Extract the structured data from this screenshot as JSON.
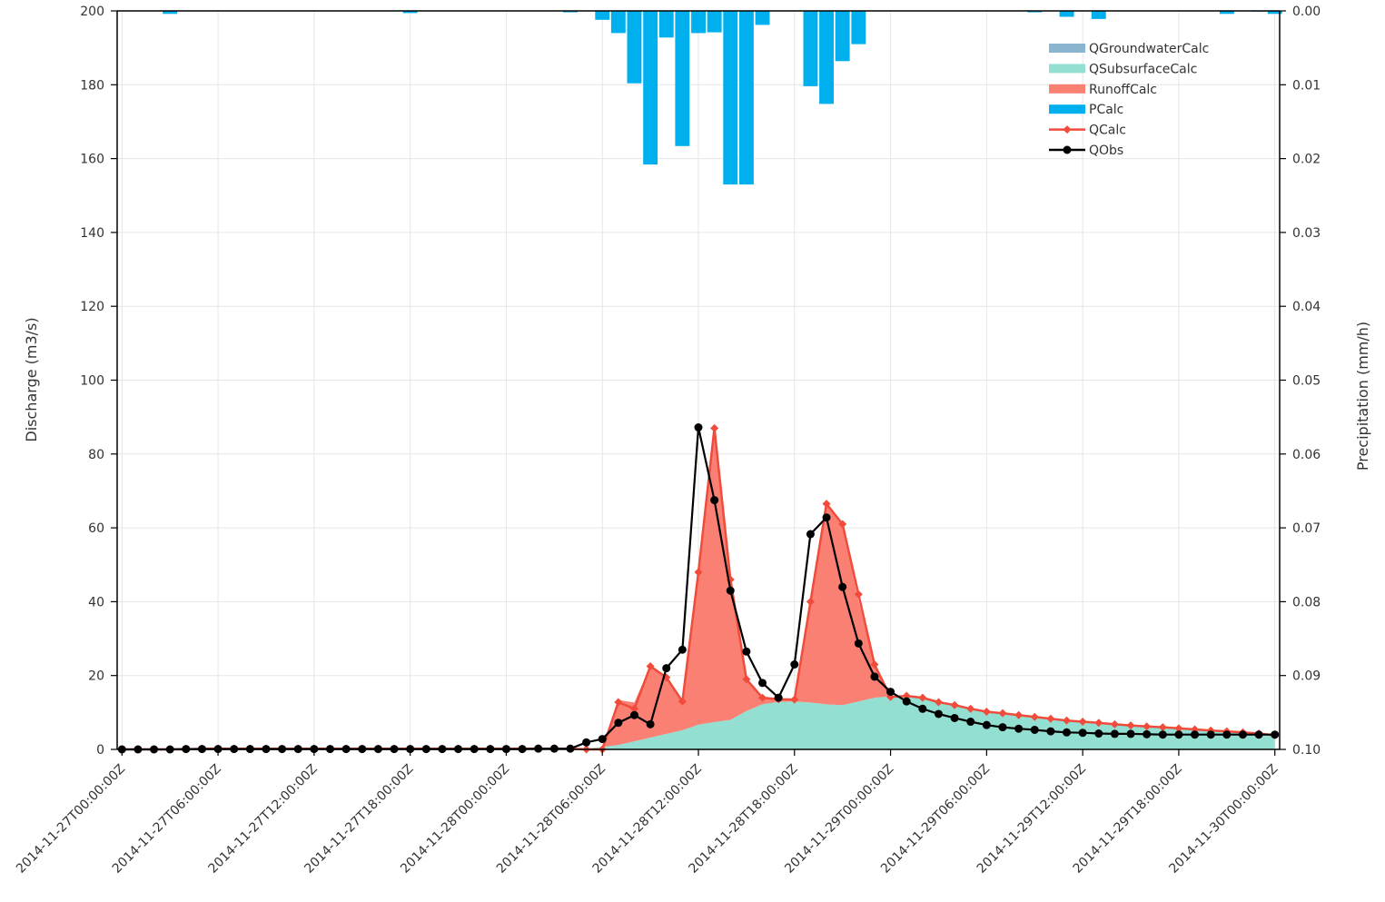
{
  "chart_data": {
    "type": "area",
    "x_start": "2014-11-27T00:00:00Z",
    "x_end": "2014-11-30T00:00:00Z",
    "x_tick_labels": [
      "2014-11-27T00:00:00Z",
      "2014-11-27T06:00:00Z",
      "2014-11-27T12:00:00Z",
      "2014-11-27T18:00:00Z",
      "2014-11-28T00:00:00Z",
      "2014-11-28T06:00:00Z",
      "2014-11-28T12:00:00Z",
      "2014-11-28T18:00:00Z",
      "2014-11-29T00:00:00Z",
      "2014-11-29T06:00:00Z",
      "2014-11-29T12:00:00Z",
      "2014-11-29T18:00:00Z",
      "2014-11-30T00:00:00Z"
    ],
    "x_hours": [
      0,
      1,
      2,
      3,
      4,
      5,
      6,
      7,
      8,
      9,
      10,
      11,
      12,
      13,
      14,
      15,
      16,
      17,
      18,
      19,
      20,
      21,
      22,
      23,
      24,
      25,
      26,
      27,
      28,
      29,
      30,
      31,
      32,
      33,
      34,
      35,
      36,
      37,
      38,
      39,
      40,
      41,
      42,
      43,
      44,
      45,
      46,
      47,
      48,
      49,
      50,
      51,
      52,
      53,
      54,
      55,
      56,
      57,
      58,
      59,
      60,
      61,
      62,
      63,
      64,
      65,
      66,
      67,
      68,
      69,
      70,
      71,
      72
    ],
    "xlim_hours": [
      -0.3,
      72.3
    ],
    "y_left": {
      "label": "Discharge (m3/s)",
      "ylim": [
        0,
        200
      ],
      "ticks": [
        "0",
        "20",
        "40",
        "60",
        "80",
        "100",
        "120",
        "140",
        "160",
        "180",
        "200"
      ]
    },
    "y_right": {
      "label": "Precipitation (mm/h)",
      "ylim": [
        0.1,
        0.0
      ],
      "inverted": true,
      "ticks": [
        "0.10",
        "0.09",
        "0.08",
        "0.07",
        "0.06",
        "0.05",
        "0.04",
        "0.03",
        "0.02",
        "0.01",
        "0.00"
      ]
    },
    "grid": true,
    "legend_position": "top-right",
    "series": [
      {
        "name": "QGroundwaterCalc",
        "kind": "area",
        "color": "#8ab4cf",
        "values": [
          0.2,
          0.2,
          0.2,
          0.2,
          0.2,
          0.2,
          0.2,
          0.2,
          0.2,
          0.2,
          0.2,
          0.2,
          0.2,
          0.2,
          0.2,
          0.2,
          0.2,
          0.2,
          0.2,
          0.2,
          0.2,
          0.2,
          0.2,
          0.2,
          0.2,
          0.2,
          0.2,
          0.2,
          0.2,
          0.2,
          0.2,
          0.2,
          0.2,
          0.2,
          0.2,
          0.2,
          0.2,
          0.2,
          0.2,
          0.2,
          0.2,
          0.2,
          0.2,
          0.2,
          0.2,
          0.2,
          0.2,
          0.2,
          0.2,
          0.2,
          0.2,
          0.2,
          0.2,
          0.2,
          0.2,
          0.2,
          0.2,
          0.2,
          0.2,
          0.2,
          0.2,
          0.2,
          0.2,
          0.2,
          0.2,
          0.2,
          0.2,
          0.2,
          0.2,
          0.2,
          0.2,
          0.2,
          0.2
        ]
      },
      {
        "name": "QSubsurfaceCalc",
        "kind": "area",
        "color": "#93e0d2",
        "values": [
          0,
          0,
          0,
          0,
          0,
          0,
          0,
          0,
          0,
          0,
          0,
          0,
          0,
          0,
          0,
          0,
          0,
          0,
          0,
          0,
          0,
          0,
          0,
          0,
          0,
          0,
          0,
          0,
          0,
          0,
          0.5,
          1,
          2,
          3,
          4,
          5,
          6.5,
          7.2,
          7.8,
          10.2,
          12,
          12.7,
          12.8,
          12.5,
          12,
          11.8,
          12.8,
          13.8,
          14.2,
          14.5,
          14,
          12.8,
          12,
          11,
          10.2,
          9.8,
          9.3,
          8.8,
          8.3,
          7.8,
          7.5,
          7.2,
          6.8,
          6.5,
          6.2,
          6,
          5.7,
          5.4,
          5.1,
          4.9,
          4.6,
          4.3,
          3.4
        ]
      },
      {
        "name": "RunoffCalc",
        "kind": "area",
        "color": "#f98073",
        "values": [
          0,
          0,
          0,
          0,
          0,
          0,
          0,
          0,
          0,
          0,
          0,
          0,
          0,
          0,
          0,
          0,
          0,
          0,
          0,
          0,
          0,
          0,
          0,
          0,
          0,
          0,
          0,
          0,
          0,
          0,
          0,
          12.2,
          10.5,
          19.5,
          15.5,
          7.5,
          41.8,
          79.8,
          38,
          8.5,
          1.6,
          0.5,
          0.7,
          27.8,
          54.5,
          48.5,
          27.3,
          8.6,
          0,
          0,
          0,
          0,
          0,
          0,
          0,
          0,
          0,
          0,
          0,
          0,
          0,
          0,
          0,
          0,
          0,
          0,
          0,
          0,
          0,
          0,
          0,
          0,
          0
        ]
      },
      {
        "name": "PCalc",
        "kind": "bar",
        "color": "#00b0ee",
        "values": [
          0,
          0,
          0,
          0.0004,
          0,
          0,
          0,
          0,
          0,
          0,
          0,
          0,
          0,
          0,
          0,
          0,
          0,
          0,
          0.0003,
          0,
          0,
          0,
          0,
          0,
          0,
          0,
          0,
          0,
          0.0002,
          0,
          0.0012,
          0.003,
          0.0098,
          0.0208,
          0.0036,
          0.0183,
          0.003,
          0.0029,
          0.0235,
          0.0235,
          0.0019,
          0,
          0,
          0.0102,
          0.0126,
          0.0068,
          0.0045,
          0,
          0,
          0,
          0,
          0,
          0,
          0,
          0,
          0,
          0,
          0.0002,
          0,
          0.0008,
          0,
          0.0011,
          0,
          0,
          0,
          0,
          0,
          0,
          0,
          0.0004,
          0,
          0.0001,
          0.0004
        ]
      },
      {
        "name": "QCalc",
        "kind": "line",
        "color": "#f04b3b",
        "marker": "diamond",
        "values": [
          0,
          0,
          0,
          0,
          0,
          0.2,
          0.2,
          0.2,
          0.2,
          0.2,
          0.2,
          0.2,
          0.2,
          0.2,
          0.2,
          0.2,
          0.2,
          0.2,
          0.2,
          0.2,
          0.2,
          0.2,
          0.2,
          0.2,
          0.2,
          0.2,
          0.2,
          0.2,
          0.2,
          0,
          0,
          12.8,
          11,
          22.5,
          19.5,
          13,
          48,
          87,
          46,
          19,
          14,
          13.6,
          13.5,
          40,
          66.5,
          61,
          42,
          23,
          14.2,
          14.5,
          14,
          12.8,
          12,
          11,
          10.2,
          9.8,
          9.3,
          8.8,
          8.3,
          7.8,
          7.5,
          7.2,
          6.8,
          6.5,
          6.2,
          6,
          5.7,
          5.4,
          5.1,
          4.9,
          4.6,
          4.3,
          3.8
        ]
      },
      {
        "name": "QObs",
        "kind": "line",
        "color": "#000000",
        "marker": "circle",
        "values": [
          0,
          0,
          0,
          0,
          0.1,
          0.1,
          0.1,
          0.1,
          0.1,
          0.1,
          0.1,
          0.1,
          0.1,
          0.1,
          0.1,
          0.1,
          0.1,
          0.1,
          0.1,
          0.1,
          0.1,
          0.1,
          0.1,
          0.1,
          0.1,
          0.1,
          0.2,
          0.2,
          0.2,
          1.9,
          2.8,
          7.2,
          9.3,
          6.8,
          22,
          27,
          87.2,
          67.5,
          43,
          26.5,
          18,
          14,
          23,
          58.3,
          62.8,
          44,
          28.7,
          19.7,
          15.6,
          13,
          11,
          9.6,
          8.5,
          7.5,
          6.6,
          6,
          5.6,
          5.3,
          4.9,
          4.6,
          4.5,
          4.3,
          4.2,
          4.2,
          4.1,
          4,
          4,
          4,
          4,
          4,
          4,
          4,
          4
        ]
      }
    ]
  },
  "legend": {
    "items": [
      {
        "label": "QGroundwaterCalc",
        "symbol": "area",
        "color": "#8ab4cf"
      },
      {
        "label": "QSubsurfaceCalc",
        "symbol": "area",
        "color": "#93e0d2"
      },
      {
        "label": "RunoffCalc",
        "symbol": "area",
        "color": "#f98073"
      },
      {
        "label": "PCalc",
        "symbol": "bar",
        "color": "#00b0ee"
      },
      {
        "label": "QCalc",
        "symbol": "line-diamond",
        "color": "#f04b3b"
      },
      {
        "label": "QObs",
        "symbol": "line-circle",
        "color": "#000000"
      }
    ]
  }
}
